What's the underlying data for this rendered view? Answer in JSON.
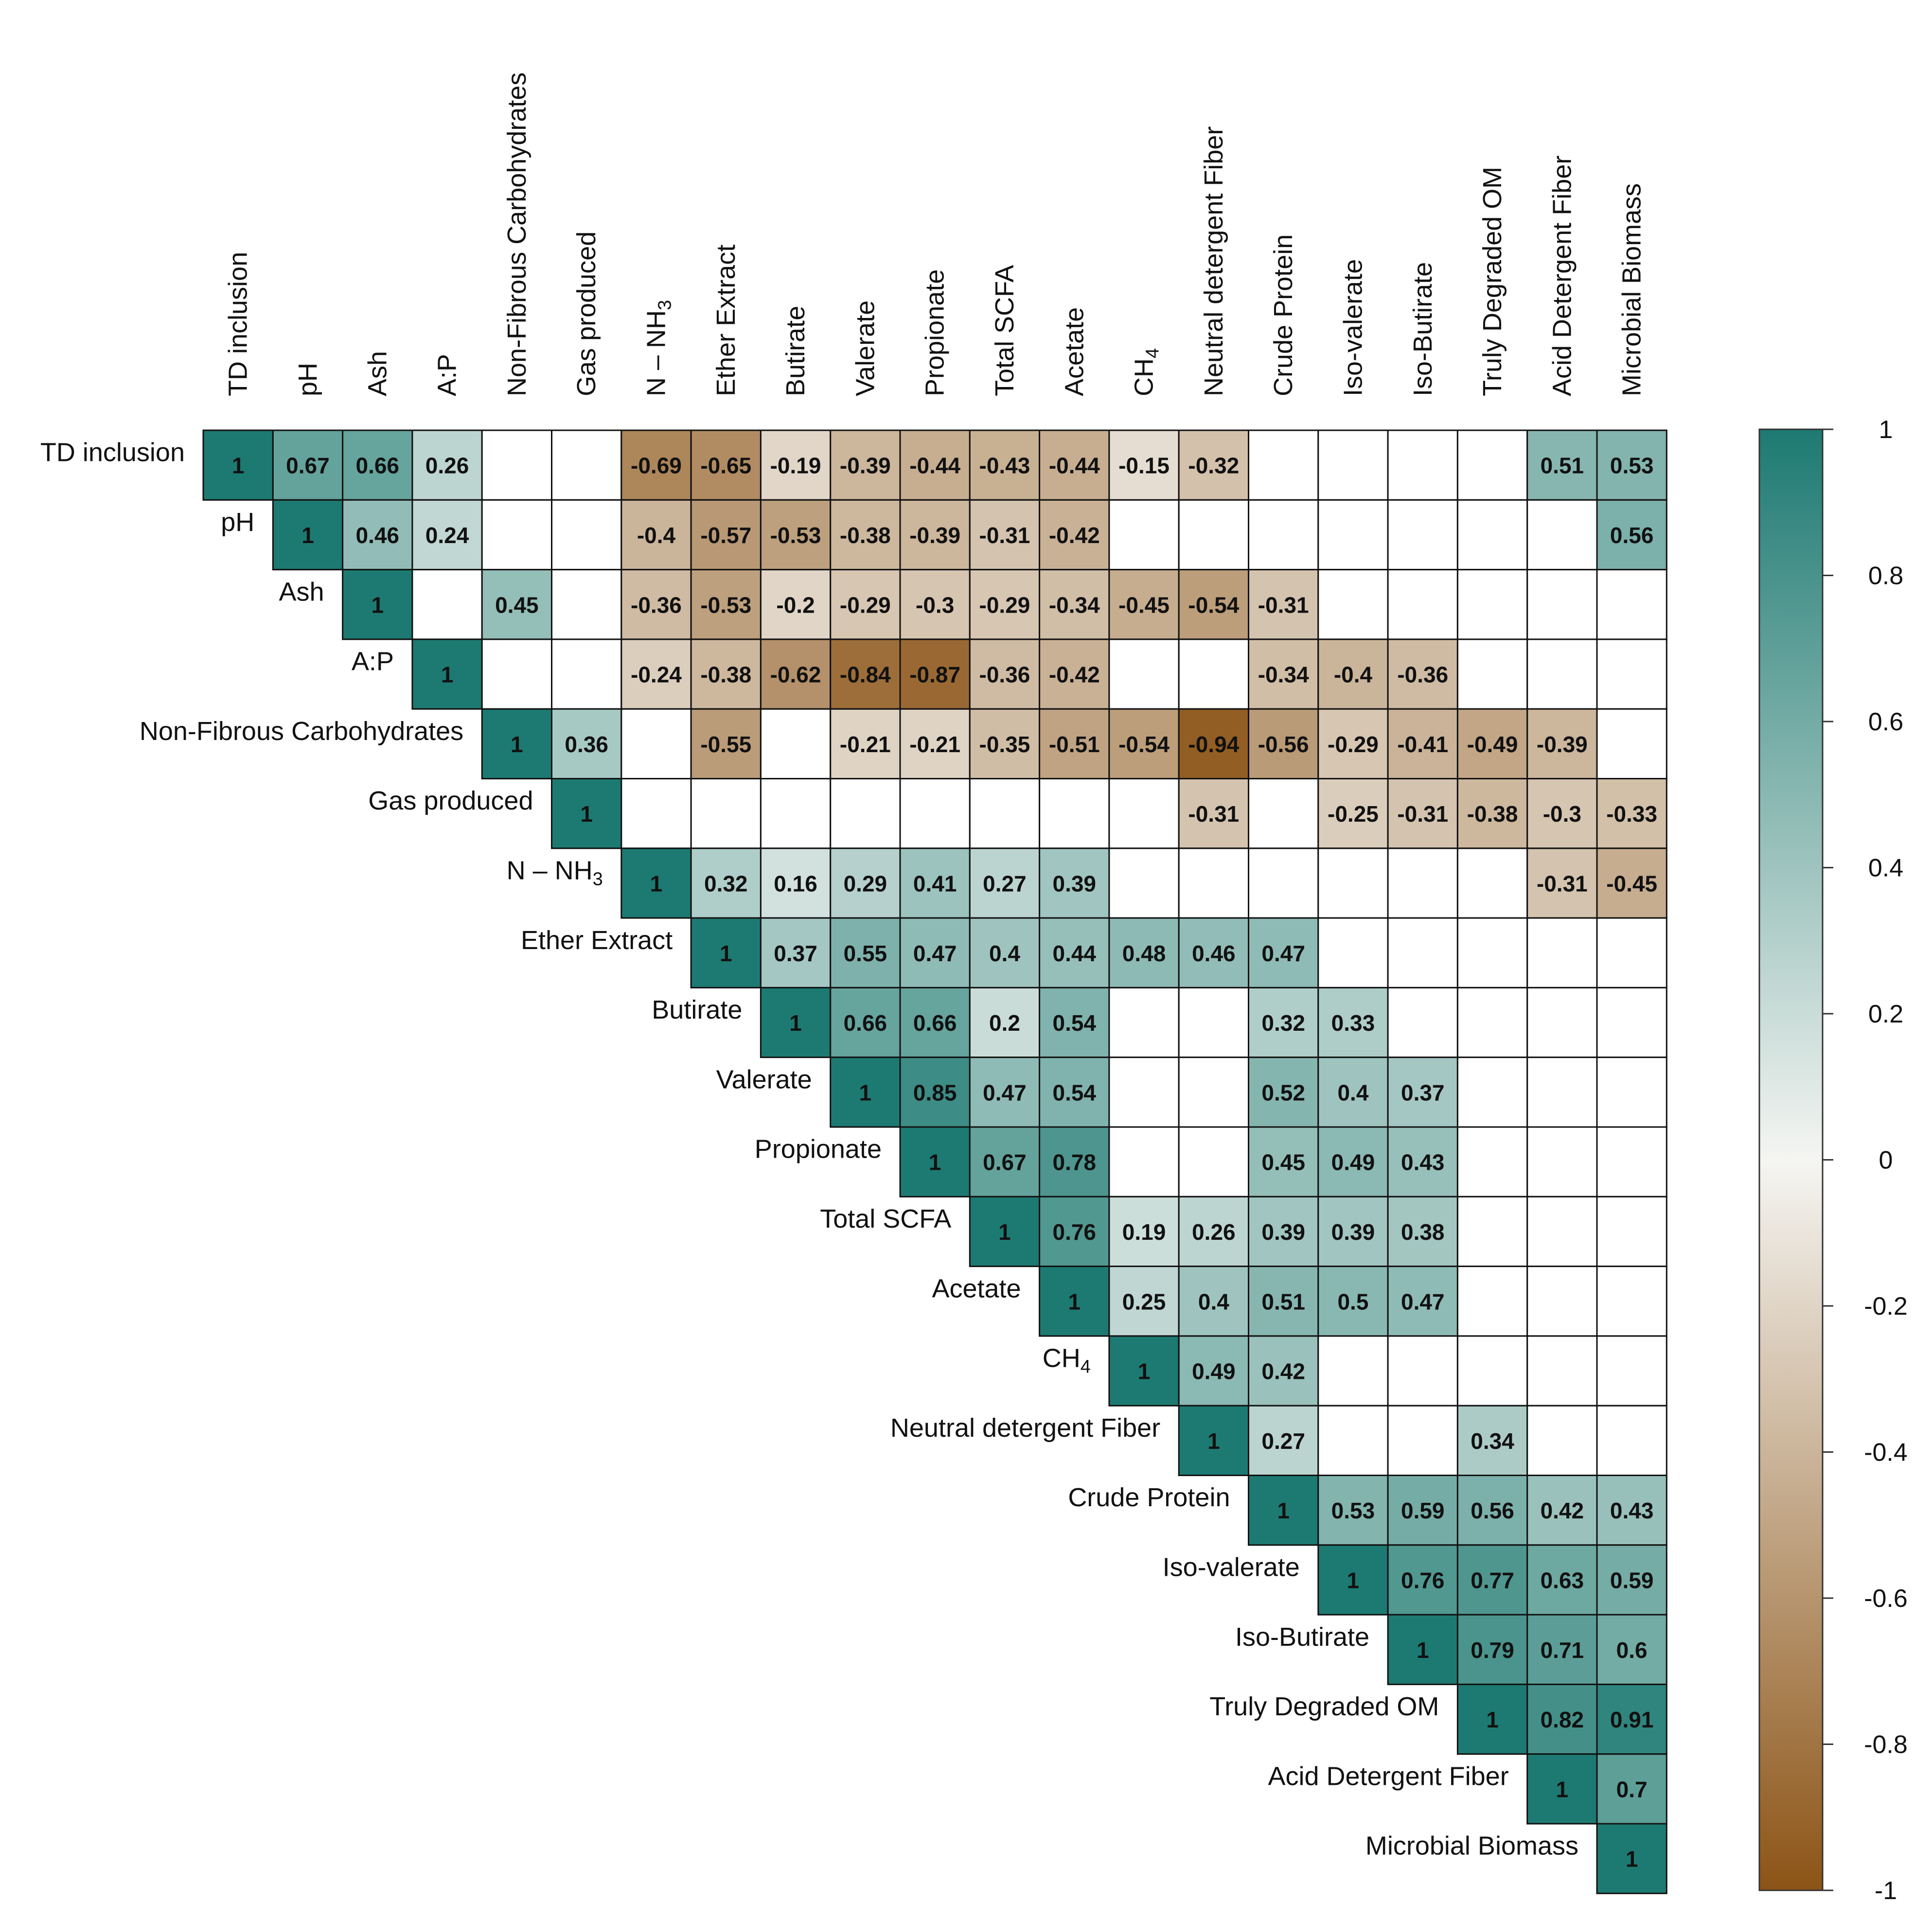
{
  "chart_data": {
    "type": "heatmap",
    "variables": [
      "TD inclusion",
      "pH",
      "Ash",
      "A:P",
      "Non-Fibrous Carbohydrates",
      "Gas produced",
      "N – NH3",
      "Ether Extract",
      "Butirate",
      "Valerate",
      "Propionate",
      "Total SCFA",
      "Acetate",
      "CH4",
      "Neutral detergent Fiber",
      "Crude Protein",
      "Iso-valerate",
      "Iso-Butirate",
      "Truly Degraded OM",
      "Acid Detergent Fiber",
      "Microbial Biomass"
    ],
    "values": [
      [
        1,
        0.67,
        0.66,
        0.26,
        null,
        null,
        -0.69,
        -0.65,
        -0.19,
        -0.39,
        -0.44,
        -0.43,
        -0.44,
        -0.15,
        -0.32,
        null,
        null,
        null,
        null,
        0.51,
        0.53
      ],
      [
        null,
        1,
        0.46,
        0.24,
        null,
        null,
        -0.4,
        -0.57,
        -0.53,
        -0.38,
        -0.39,
        -0.31,
        -0.42,
        null,
        null,
        null,
        null,
        null,
        null,
        null,
        0.56
      ],
      [
        null,
        null,
        1,
        null,
        0.45,
        null,
        -0.36,
        -0.53,
        -0.2,
        -0.29,
        -0.3,
        -0.29,
        -0.34,
        -0.45,
        -0.54,
        -0.31,
        null,
        null,
        null,
        null,
        null
      ],
      [
        null,
        null,
        null,
        1,
        null,
        null,
        -0.24,
        -0.38,
        -0.62,
        -0.84,
        -0.87,
        -0.36,
        -0.42,
        null,
        null,
        -0.34,
        -0.4,
        -0.36,
        null,
        null,
        null
      ],
      [
        null,
        null,
        null,
        null,
        1,
        0.36,
        null,
        -0.55,
        null,
        -0.21,
        -0.21,
        -0.35,
        -0.51,
        -0.54,
        -0.94,
        -0.56,
        -0.29,
        -0.41,
        -0.49,
        -0.39,
        null
      ],
      [
        null,
        null,
        null,
        null,
        null,
        1,
        null,
        null,
        null,
        null,
        null,
        null,
        null,
        null,
        -0.31,
        null,
        -0.25,
        -0.31,
        -0.38,
        -0.3,
        -0.33
      ],
      [
        null,
        null,
        null,
        null,
        null,
        null,
        1,
        0.32,
        0.16,
        0.29,
        0.41,
        0.27,
        0.39,
        null,
        null,
        null,
        null,
        null,
        null,
        -0.31,
        -0.45
      ],
      [
        null,
        null,
        null,
        null,
        null,
        null,
        null,
        1,
        0.37,
        0.55,
        0.47,
        0.4,
        0.44,
        0.48,
        0.46,
        0.47,
        null,
        null,
        null,
        null,
        null
      ],
      [
        null,
        null,
        null,
        null,
        null,
        null,
        null,
        null,
        1,
        0.66,
        0.66,
        0.2,
        0.54,
        null,
        null,
        0.32,
        0.33,
        null,
        null,
        null,
        null
      ],
      [
        null,
        null,
        null,
        null,
        null,
        null,
        null,
        null,
        null,
        1,
        0.85,
        0.47,
        0.54,
        null,
        null,
        0.52,
        0.4,
        0.37,
        null,
        null,
        null
      ],
      [
        null,
        null,
        null,
        null,
        null,
        null,
        null,
        null,
        null,
        null,
        1,
        0.67,
        0.78,
        null,
        null,
        0.45,
        0.49,
        0.43,
        null,
        null,
        null
      ],
      [
        null,
        null,
        null,
        null,
        null,
        null,
        null,
        null,
        null,
        null,
        null,
        1,
        0.76,
        0.19,
        0.26,
        0.39,
        0.39,
        0.38,
        null,
        null,
        null
      ],
      [
        null,
        null,
        null,
        null,
        null,
        null,
        null,
        null,
        null,
        null,
        null,
        null,
        1,
        0.25,
        0.4,
        0.51,
        0.5,
        0.47,
        null,
        null,
        null
      ],
      [
        null,
        null,
        null,
        null,
        null,
        null,
        null,
        null,
        null,
        null,
        null,
        null,
        null,
        1,
        0.49,
        0.42,
        null,
        null,
        null,
        null,
        null
      ],
      [
        null,
        null,
        null,
        null,
        null,
        null,
        null,
        null,
        null,
        null,
        null,
        null,
        null,
        null,
        1,
        0.27,
        null,
        null,
        0.34,
        null,
        null
      ],
      [
        null,
        null,
        null,
        null,
        null,
        null,
        null,
        null,
        null,
        null,
        null,
        null,
        null,
        null,
        null,
        1,
        0.53,
        0.59,
        0.56,
        0.42,
        0.43
      ],
      [
        null,
        null,
        null,
        null,
        null,
        null,
        null,
        null,
        null,
        null,
        null,
        null,
        null,
        null,
        null,
        null,
        1,
        0.76,
        0.77,
        0.63,
        0.59
      ],
      [
        null,
        null,
        null,
        null,
        null,
        null,
        null,
        null,
        null,
        null,
        null,
        null,
        null,
        null,
        null,
        null,
        null,
        1,
        0.79,
        0.71,
        0.6
      ],
      [
        null,
        null,
        null,
        null,
        null,
        null,
        null,
        null,
        null,
        null,
        null,
        null,
        null,
        null,
        null,
        null,
        null,
        null,
        1,
        0.82,
        0.91
      ],
      [
        null,
        null,
        null,
        null,
        null,
        null,
        null,
        null,
        null,
        null,
        null,
        null,
        null,
        null,
        null,
        null,
        null,
        null,
        null,
        1,
        0.7
      ],
      [
        null,
        null,
        null,
        null,
        null,
        null,
        null,
        null,
        null,
        null,
        null,
        null,
        null,
        null,
        null,
        null,
        null,
        null,
        null,
        null,
        1
      ]
    ],
    "colorbar": {
      "min": -1,
      "max": 1,
      "ticks": [
        "1",
        "0.8",
        "0.6",
        "0.4",
        "0.2",
        "0",
        "-0.2",
        "-0.4",
        "-0.6",
        "-0.8",
        "-1"
      ],
      "colors": {
        "positive": "#1d7a72",
        "neutral": "#f5f5f2",
        "negative": "#8c5416"
      }
    },
    "title": "",
    "xlabel": "",
    "ylabel": ""
  }
}
